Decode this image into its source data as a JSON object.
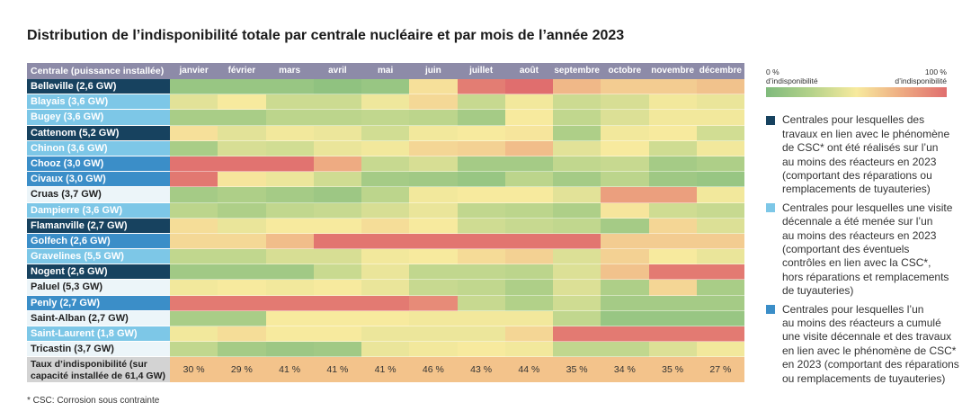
{
  "footnote": "* CSC: Corrosion sous contrainte",
  "legend": {
    "scale_low_value": "0 %",
    "scale_low_label": "d’indisponibilité",
    "scale_high_value": "100 %",
    "scale_high_label": "d’indisponibilité",
    "groups": [
      {
        "color": "#17425f",
        "lines": [
          "Centrales pour lesquelles des",
          "travaux en lien avec le phénomène",
          "de CSC* ont été réalisés sur l’un",
          "au moins des réacteurs en 2023",
          "(comportant des réparations ou",
          "remplacements de tuyauteries)"
        ]
      },
      {
        "color": "#7dc7e7",
        "lines": [
          "Centrales pour lesquelles une visite",
          "décennale a été menée sur l’un",
          "au moins des réacteurs en 2023",
          "(comportant des éventuels",
          "contrôles en lien avec la CSC*,",
          "hors réparations et remplacements",
          "de tuyauteries)"
        ]
      },
      {
        "color": "#3b8ec8",
        "lines": [
          "Centrales pour lesquelles l’un",
          "au moins des réacteurs a cumulé",
          "une visite décennale et des travaux",
          "en lien avec le phénomène de CSC*",
          "en 2023 (comportant des réparations",
          "ou remplacements de tuyauteries)"
        ]
      }
    ]
  },
  "chart_data": {
    "type": "heatmap",
    "title": "Distribution de l’indisponibilité totale par centrale nucléaire et par mois de l’année 2023",
    "row_header": "Centrale (puissance installée)",
    "x": [
      "janvier",
      "février",
      "mars",
      "avril",
      "mai",
      "juin",
      "juillet",
      "août",
      "septembre",
      "octobre",
      "novembre",
      "décembre"
    ],
    "y": [
      "Belleville (2,6 GW)",
      "Blayais (3,6 GW)",
      "Bugey (3,6 GW)",
      "Cattenom (5,2 GW)",
      "Chinon (3,6 GW)",
      "Chooz (3,0 GW)",
      "Civaux (3,0 GW)",
      "Cruas (3,7 GW)",
      "Dampierre (3,6 GW)",
      "Flamanville (2,7 GW)",
      "Golfech (2,6 GW)",
      "Gravelines (5,5 GW)",
      "Nogent (2,6 GW)",
      "Paluel (5,3 GW)",
      "Penly (2,7 GW)",
      "Saint-Alban (2,7 GW)",
      "Saint-Laurent (1,8 GW)",
      "Tricastin (3,7 GW)"
    ],
    "y_colors": [
      "#17425f",
      "#7dc7e7",
      "#7dc7e7",
      "#17425f",
      "#7dc7e7",
      "#3b8ec8",
      "#3b8ec8",
      "#ecf5f9",
      "#7dc7e7",
      "#17425f",
      "#3b8ec8",
      "#7dc7e7",
      "#17425f",
      "#ecf5f9",
      "#3b8ec8",
      "#ecf5f9",
      "#7dc7e7",
      "#ecf5f9"
    ],
    "values": [
      [
        12,
        12,
        12,
        8,
        12,
        54,
        94,
        100,
        70,
        62,
        62,
        66
      ],
      [
        42,
        50,
        34,
        34,
        47,
        57,
        32,
        48,
        34,
        38,
        48,
        45
      ],
      [
        20,
        20,
        28,
        28,
        30,
        28,
        18,
        50,
        30,
        40,
        48,
        48
      ],
      [
        54,
        42,
        48,
        46,
        36,
        48,
        50,
        52,
        22,
        48,
        50,
        36
      ],
      [
        20,
        38,
        36,
        45,
        48,
        58,
        60,
        68,
        42,
        50,
        35,
        48
      ],
      [
        98,
        98,
        98,
        75,
        32,
        38,
        18,
        18,
        30,
        32,
        18,
        22
      ],
      [
        96,
        52,
        46,
        35,
        18,
        16,
        12,
        28,
        18,
        28,
        15,
        12
      ],
      [
        18,
        22,
        18,
        14,
        28,
        48,
        50,
        50,
        42,
        80,
        80,
        48
      ],
      [
        28,
        22,
        30,
        32,
        38,
        45,
        30,
        28,
        22,
        52,
        35,
        32
      ],
      [
        55,
        45,
        50,
        50,
        55,
        50,
        35,
        32,
        30,
        18,
        58,
        40
      ],
      [
        57,
        57,
        68,
        97,
        97,
        97,
        97,
        97,
        97,
        62,
        62,
        62
      ],
      [
        30,
        30,
        38,
        38,
        48,
        50,
        56,
        60,
        40,
        60,
        50,
        45
      ],
      [
        16,
        16,
        16,
        33,
        45,
        30,
        30,
        28,
        40,
        66,
        95,
        95
      ],
      [
        48,
        50,
        48,
        50,
        45,
        32,
        30,
        22,
        40,
        22,
        58,
        20
      ],
      [
        95,
        95,
        95,
        95,
        95,
        88,
        32,
        24,
        35,
        18,
        18,
        18
      ],
      [
        20,
        20,
        50,
        50,
        50,
        48,
        48,
        48,
        30,
        12,
        12,
        12
      ],
      [
        48,
        55,
        50,
        50,
        46,
        46,
        46,
        58,
        95,
        95,
        95,
        95
      ],
      [
        30,
        18,
        14,
        16,
        45,
        48,
        50,
        48,
        30,
        30,
        40,
        48
      ]
    ],
    "zlim": [
      0,
      100
    ],
    "colorscale": [
      [
        0,
        "#7fba7c"
      ],
      [
        0.25,
        "#b4d28a"
      ],
      [
        0.5,
        "#f7ea9e"
      ],
      [
        0.75,
        "#eeab82"
      ],
      [
        1,
        "#e06e6e"
      ]
    ],
    "total_row": {
      "label": "Taux d’indisponibilité (sur capacité installée de 61,4 GW)",
      "values": [
        30,
        29,
        41,
        41,
        41,
        46,
        43,
        44,
        35,
        34,
        35,
        27
      ],
      "unit": "%",
      "color": "#f3c38b"
    }
  }
}
